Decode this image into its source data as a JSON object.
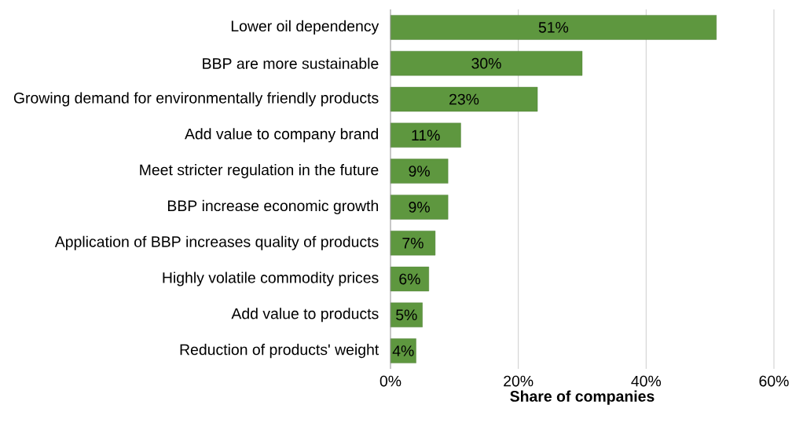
{
  "chart_data": {
    "type": "bar",
    "orientation": "horizontal",
    "xlabel": "Share of companies",
    "categories": [
      "Lower oil dependency",
      "BBP are more sustainable",
      "Growing demand for environmentally friendly products",
      "Add value to company brand",
      "Meet stricter regulation in the future",
      "BBP increase economic growth",
      "Application of BBP increases quality of products",
      "Highly volatile commodity prices",
      "Add value to products",
      "Reduction of products' weight"
    ],
    "values": [
      51,
      30,
      23,
      11,
      9,
      9,
      7,
      6,
      5,
      4
    ],
    "value_labels": [
      "51%",
      "30%",
      "23%",
      "11%",
      "9%",
      "9%",
      "7%",
      "6%",
      "5%",
      "4%"
    ],
    "color": "#5e973f",
    "xlim": [
      0,
      60
    ],
    "xticks": [
      {
        "value": 0,
        "label": "0%"
      },
      {
        "value": 20,
        "label": "20%"
      },
      {
        "value": 40,
        "label": "40%"
      },
      {
        "value": 60,
        "label": "60%"
      }
    ],
    "grid": "x"
  }
}
